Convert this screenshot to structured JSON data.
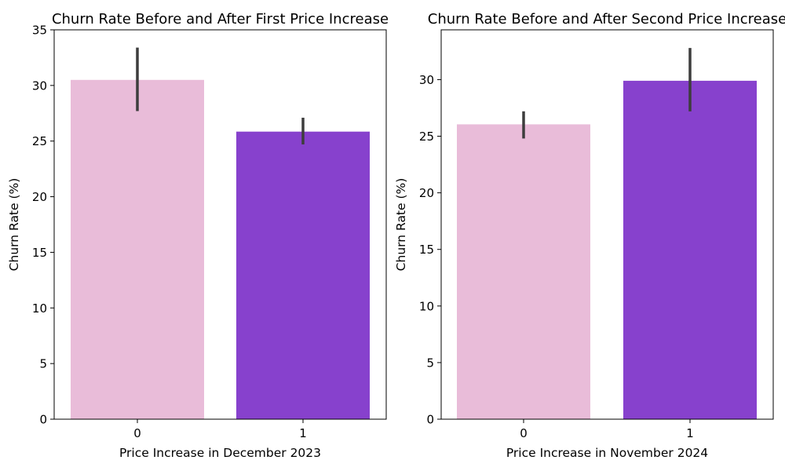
{
  "chart_data": [
    {
      "type": "bar",
      "title": "Churn Rate Before and After First Price Increase",
      "xlabel": "Price Increase in December 2023",
      "ylabel": "Churn Rate (%)",
      "categories": [
        "0",
        "1"
      ],
      "values": [
        30.5,
        25.85
      ],
      "error_low": [
        27.7,
        24.7
      ],
      "error_high": [
        33.4,
        27.1
      ],
      "ylim": [
        0,
        35
      ],
      "yticks": [
        0,
        5,
        10,
        15,
        20,
        25,
        30,
        35
      ],
      "ytick_labels": [
        "0",
        "5",
        "10",
        "15",
        "20",
        "25",
        "30",
        "35"
      ],
      "colors": [
        "#e9bcd9",
        "#8741cd"
      ],
      "error_color": "#3d3d3d",
      "grid": false
    },
    {
      "type": "bar",
      "title": "Churn Rate Before and After Second Price Increase",
      "xlabel": "Price Increase in November 2024",
      "ylabel": "Churn Rate (%)",
      "categories": [
        "0",
        "1"
      ],
      "values": [
        26.05,
        29.9
      ],
      "error_low": [
        24.8,
        27.2
      ],
      "error_high": [
        27.2,
        32.8
      ],
      "ylim": [
        0,
        34.4
      ],
      "yticks": [
        0,
        5,
        10,
        15,
        20,
        25,
        30
      ],
      "ytick_labels": [
        "0",
        "5",
        "10",
        "15",
        "20",
        "25",
        "30"
      ],
      "colors": [
        "#e9bcd9",
        "#8741cd"
      ],
      "error_color": "#3d3d3d",
      "grid": false
    }
  ]
}
